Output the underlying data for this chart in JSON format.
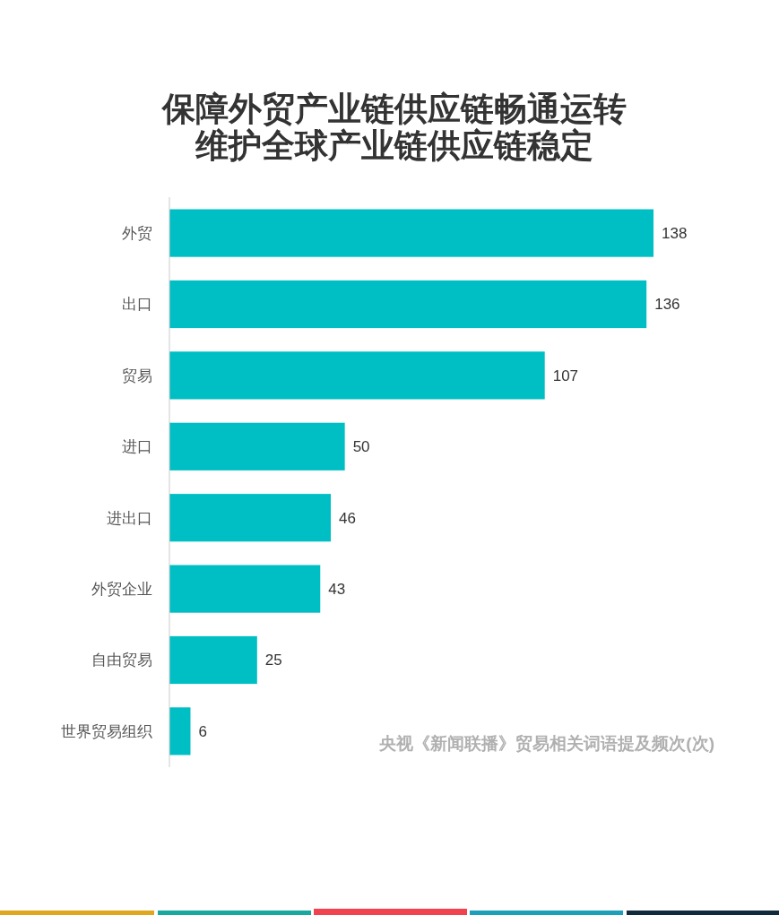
{
  "chart_data": {
    "type": "bar",
    "orientation": "horizontal",
    "title": "保障外贸产业链供应链畅通运转维护全球产业链供应链稳定",
    "categories": [
      "外贸",
      "出口",
      "贸易",
      "进口",
      "进出口",
      "外贸企业",
      "自由贸易",
      "世界贸易组织"
    ],
    "values": [
      138,
      136,
      107,
      50,
      46,
      43,
      25,
      6
    ],
    "color": "#00bfc4",
    "data_labels": true,
    "tick_labels": "y",
    "annotations": [
      "央视《新闻联播》贸易相关词语提及频次(次)"
    ]
  }
}
